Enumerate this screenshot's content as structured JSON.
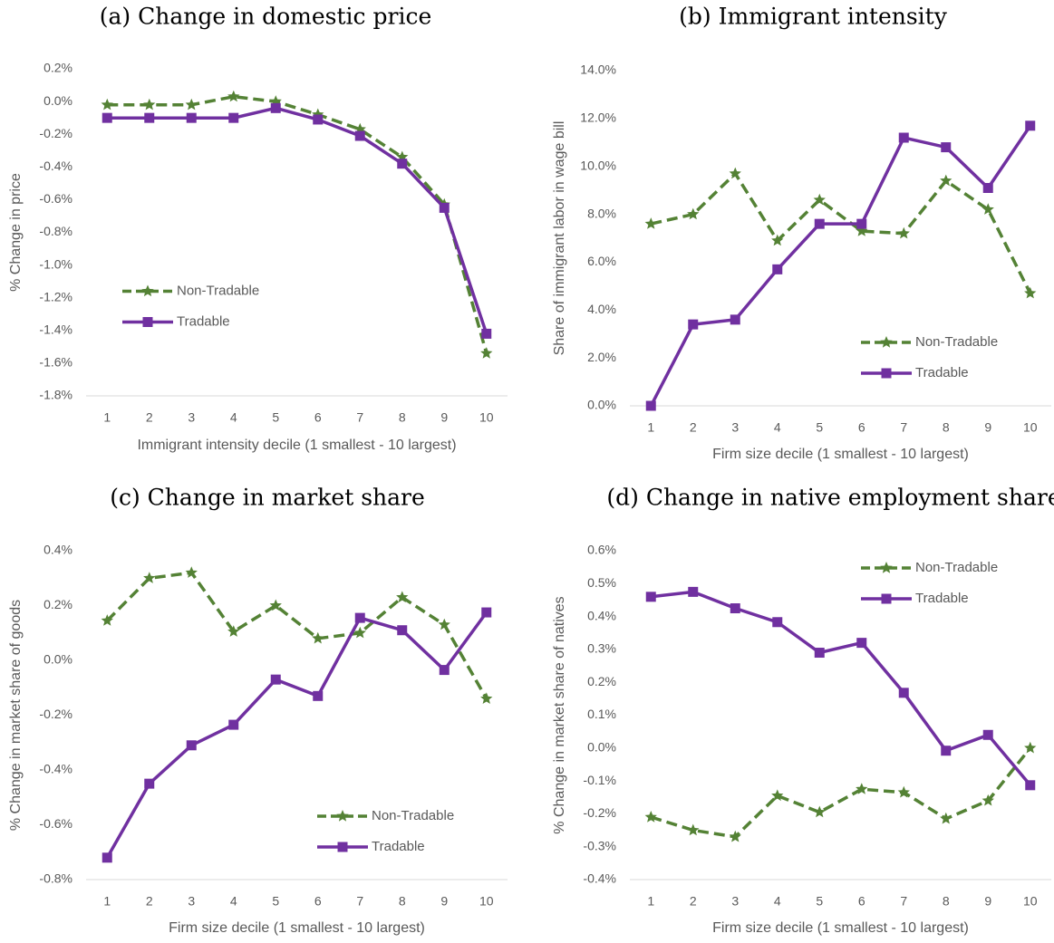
{
  "chart_data": [
    {
      "type": "line",
      "title": "(a) Change in domestic price",
      "xlabel": "Immigrant intensity decile (1 smallest - 10 largest)",
      "ylabel": "% Change in price",
      "categories": [
        "1",
        "2",
        "3",
        "4",
        "5",
        "6",
        "7",
        "8",
        "9",
        "10"
      ],
      "series": [
        {
          "name": "Non-Tradable",
          "color": "#548235",
          "values": [
            -0.02,
            -0.02,
            -0.02,
            0.03,
            0.0,
            -0.08,
            -0.17,
            -0.34,
            -0.63,
            -1.54
          ]
        },
        {
          "name": "Tradable",
          "color": "#7030a0",
          "values": [
            -0.1,
            -0.1,
            -0.1,
            -0.1,
            -0.04,
            -0.11,
            -0.21,
            -0.38,
            -0.65,
            -1.42
          ]
        }
      ],
      "ylim": [
        -1.8,
        0.2
      ],
      "yticks": [
        {
          "value": 0.2,
          "label": "0.2%"
        },
        {
          "value": 0.0,
          "label": "0.0%"
        },
        {
          "value": -0.2,
          "label": "-0.2%"
        },
        {
          "value": -0.4,
          "label": "-0.4%"
        },
        {
          "value": -0.6,
          "label": "-0.6%"
        },
        {
          "value": -0.8,
          "label": "-0.8%"
        },
        {
          "value": -1.0,
          "label": "-1.0%"
        },
        {
          "value": -1.2,
          "label": "-1.2%"
        },
        {
          "value": -1.4,
          "label": "-1.4%"
        },
        {
          "value": -1.6,
          "label": "-1.6%"
        },
        {
          "value": -1.8,
          "label": "-1.8%"
        }
      ],
      "grid": false,
      "legend_position": "center left"
    },
    {
      "type": "line",
      "title": "(b) Immigrant intensity",
      "xlabel": "Firm size decile (1 smallest - 10 largest)",
      "ylabel": "Share of immigrant labor in wage bill",
      "categories": [
        "1",
        "2",
        "3",
        "4",
        "5",
        "6",
        "7",
        "8",
        "9",
        "10"
      ],
      "series": [
        {
          "name": "Non-Tradable",
          "color": "#548235",
          "values": [
            7.6,
            8.0,
            9.7,
            6.9,
            8.6,
            7.3,
            7.2,
            9.4,
            8.2,
            4.7
          ]
        },
        {
          "name": "Tradable",
          "color": "#7030a0",
          "values": [
            0.0,
            3.4,
            3.6,
            5.7,
            7.6,
            7.6,
            11.2,
            10.8,
            9.1,
            11.7
          ]
        }
      ],
      "ylim": [
        0,
        14
      ],
      "yticks": [
        {
          "value": 0,
          "label": "0.0%"
        },
        {
          "value": 2,
          "label": "2.0%"
        },
        {
          "value": 4,
          "label": "4.0%"
        },
        {
          "value": 6,
          "label": "6.0%"
        },
        {
          "value": 8,
          "label": "8.0%"
        },
        {
          "value": 10,
          "label": "10.0%"
        },
        {
          "value": 12,
          "label": "12.0%"
        },
        {
          "value": 14,
          "label": "14.0%"
        }
      ],
      "grid": false,
      "legend_position": "lower right"
    },
    {
      "type": "line",
      "title": "(c) Change in market share",
      "xlabel": "Firm size decile (1 smallest - 10 largest)",
      "ylabel": "% Change in market share of goods",
      "categories": [
        "1",
        "2",
        "3",
        "4",
        "5",
        "6",
        "7",
        "8",
        "9",
        "10"
      ],
      "series": [
        {
          "name": "Non-Tradable",
          "color": "#548235",
          "values": [
            0.145,
            0.3,
            0.32,
            0.105,
            0.2,
            0.08,
            0.1,
            0.23,
            0.13,
            -0.14
          ]
        },
        {
          "name": "Tradable",
          "color": "#7030a0",
          "values": [
            -0.72,
            -0.45,
            -0.31,
            -0.235,
            -0.07,
            -0.13,
            0.155,
            0.11,
            -0.035,
            0.175
          ]
        }
      ],
      "ylim": [
        -0.8,
        0.4
      ],
      "yticks": [
        {
          "value": 0.4,
          "label": "0.4%"
        },
        {
          "value": 0.2,
          "label": "0.2%"
        },
        {
          "value": 0.0,
          "label": "0.0%"
        },
        {
          "value": -0.2,
          "label": "-0.2%"
        },
        {
          "value": -0.4,
          "label": "-0.4%"
        },
        {
          "value": -0.6,
          "label": "-0.6%"
        },
        {
          "value": -0.8,
          "label": "-0.8%"
        }
      ],
      "grid": false,
      "legend_position": "lower right"
    },
    {
      "type": "line",
      "title": "(d) Change in native employment share",
      "xlabel": "Firm size decile (1 smallest - 10 largest)",
      "ylabel": "% Change in market share of natives",
      "categories": [
        "1",
        "2",
        "3",
        "4",
        "5",
        "6",
        "7",
        "8",
        "9",
        "10"
      ],
      "series": [
        {
          "name": "Non-Tradable",
          "color": "#548235",
          "values": [
            -0.21,
            -0.25,
            -0.27,
            -0.145,
            -0.195,
            -0.125,
            -0.135,
            -0.215,
            -0.16,
            0.0
          ]
        },
        {
          "name": "Tradable",
          "color": "#7030a0",
          "values": [
            0.46,
            0.475,
            0.425,
            0.383,
            0.29,
            0.32,
            0.168,
            -0.008,
            0.04,
            -0.113
          ]
        }
      ],
      "ylim": [
        -0.4,
        0.6
      ],
      "yticks": [
        {
          "value": 0.6,
          "label": "0.6%"
        },
        {
          "value": 0.5,
          "label": "0.5%"
        },
        {
          "value": 0.4,
          "label": "0.4%"
        },
        {
          "value": 0.3,
          "label": "0.3%"
        },
        {
          "value": 0.2,
          "label": "0.2%"
        },
        {
          "value": 0.1,
          "label": "0.1%"
        },
        {
          "value": 0.0,
          "label": "0.0%"
        },
        {
          "value": -0.1,
          "label": "-0.1%"
        },
        {
          "value": -0.2,
          "label": "-0.2%"
        },
        {
          "value": -0.3,
          "label": "-0.3%"
        },
        {
          "value": -0.4,
          "label": "-0.4%"
        }
      ],
      "grid": false,
      "legend_position": "upper right"
    }
  ]
}
